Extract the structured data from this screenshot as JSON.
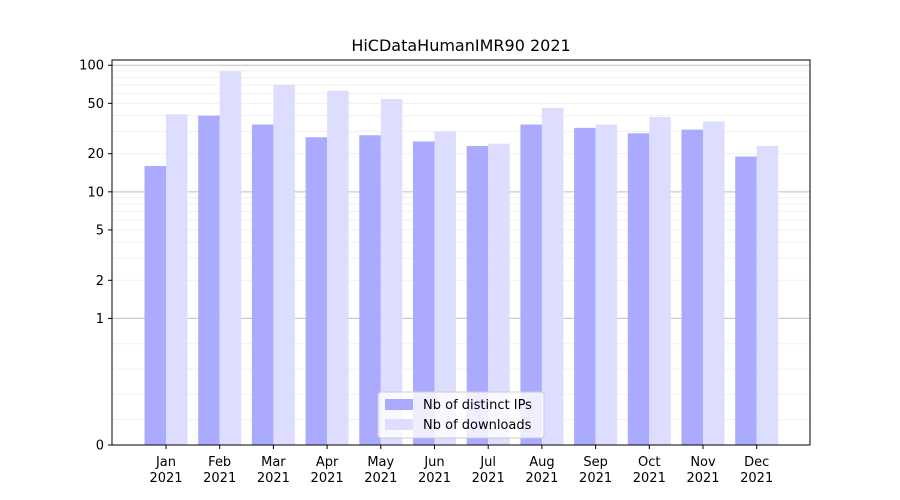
{
  "chart_data": {
    "type": "bar",
    "title": "HiCDataHumanIMR90 2021",
    "xlabel": "",
    "ylabel": "",
    "yscale": "symlog",
    "ylim": [
      0,
      110
    ],
    "yticks": [
      0,
      1,
      2,
      5,
      10,
      20,
      50,
      100
    ],
    "ytick_labels": [
      "0",
      "1",
      "2",
      "5",
      "10",
      "20",
      "50",
      "100"
    ],
    "categories": [
      "Jan\n2021",
      "Feb\n2021",
      "Mar\n2021",
      "Apr\n2021",
      "May\n2021",
      "Jun\n2021",
      "Jul\n2021",
      "Aug\n2021",
      "Sep\n2021",
      "Oct\n2021",
      "Nov\n2021",
      "Dec\n2021"
    ],
    "category_lines": [
      [
        "Jan",
        "2021"
      ],
      [
        "Feb",
        "2021"
      ],
      [
        "Mar",
        "2021"
      ],
      [
        "Apr",
        "2021"
      ],
      [
        "May",
        "2021"
      ],
      [
        "Jun",
        "2021"
      ],
      [
        "Jul",
        "2021"
      ],
      [
        "Aug",
        "2021"
      ],
      [
        "Sep",
        "2021"
      ],
      [
        "Oct",
        "2021"
      ],
      [
        "Nov",
        "2021"
      ],
      [
        "Dec",
        "2021"
      ]
    ],
    "series": [
      {
        "name": "Nb of distinct IPs",
        "color": "#aaaaff",
        "values": [
          16,
          40,
          34,
          27,
          28,
          25,
          23,
          34,
          32,
          29,
          31,
          19
        ]
      },
      {
        "name": "Nb of downloads",
        "color": "#ddddff",
        "values": [
          41,
          90,
          70,
          63,
          54,
          30,
          24,
          46,
          34,
          39,
          36,
          23
        ]
      }
    ],
    "legend_position": "lower-center",
    "grid": true
  }
}
